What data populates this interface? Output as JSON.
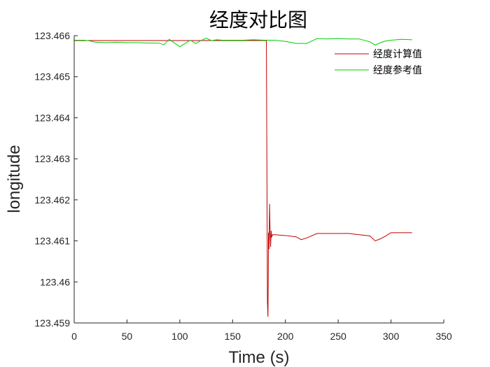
{
  "chart_data": {
    "type": "line",
    "title": "经度对比图",
    "xlabel": "Time (s)",
    "ylabel": "longitude",
    "xlim": [
      0,
      350
    ],
    "ylim": [
      123.459,
      123.466
    ],
    "xticks": [
      0,
      50,
      100,
      150,
      200,
      250,
      300,
      350
    ],
    "yticks": [
      123.459,
      123.46,
      123.461,
      123.462,
      123.463,
      123.464,
      123.465,
      123.466
    ],
    "ytick_labels": [
      "123.459",
      "123.46",
      "123.461",
      "123.462",
      "123.463",
      "123.464",
      "123.465",
      "123.466"
    ],
    "grid": false,
    "legend_position": "top-right",
    "series": [
      {
        "name": "经度计算值",
        "color": "#c00000",
        "x": [
          0,
          10,
          20,
          40,
          60,
          80,
          100,
          120,
          135,
          150,
          170,
          182,
          183,
          183.5,
          184,
          184.5,
          185,
          185.5,
          186,
          186.5,
          187,
          188,
          190,
          200,
          210,
          215,
          220,
          230,
          240,
          260,
          280,
          285,
          290,
          295,
          300,
          310,
          320
        ],
        "y": [
          123.46588,
          123.46588,
          123.46588,
          123.46588,
          123.46588,
          123.46588,
          123.46588,
          123.46588,
          123.46588,
          123.46588,
          123.46588,
          123.46588,
          123.4595,
          123.45915,
          123.4612,
          123.4608,
          123.4619,
          123.4612,
          123.46085,
          123.46125,
          123.4611,
          123.46115,
          123.46115,
          123.46113,
          123.4611,
          123.46103,
          123.46107,
          123.46118,
          123.46118,
          123.46118,
          123.46112,
          123.461,
          123.46105,
          123.46112,
          123.4612,
          123.4612,
          123.4612
        ]
      },
      {
        "name": "经度参考值",
        "color": "#00cc00",
        "x": [
          0,
          10,
          15,
          20,
          30,
          40,
          50,
          60,
          70,
          80,
          85,
          90,
          95,
          100,
          105,
          110,
          115,
          120,
          125,
          130,
          135,
          140,
          150,
          160,
          170,
          180,
          190,
          200,
          210,
          220,
          230,
          240,
          250,
          260,
          270,
          280,
          285,
          290,
          295,
          300,
          310,
          320
        ],
        "y": [
          123.46589,
          123.46589,
          123.46587,
          123.46584,
          123.46583,
          123.46584,
          123.46583,
          123.46583,
          123.46582,
          123.46582,
          123.46578,
          123.46591,
          123.46582,
          123.46573,
          123.46581,
          123.46589,
          123.46581,
          123.46588,
          123.46594,
          123.46588,
          123.4659,
          123.46589,
          123.46589,
          123.46589,
          123.4659,
          123.46589,
          123.46589,
          123.46586,
          123.46581,
          123.46581,
          123.46593,
          123.46592,
          123.46593,
          123.46592,
          123.46592,
          123.46585,
          123.46577,
          123.46583,
          123.46587,
          123.46589,
          123.46591,
          123.4659
        ]
      }
    ]
  }
}
